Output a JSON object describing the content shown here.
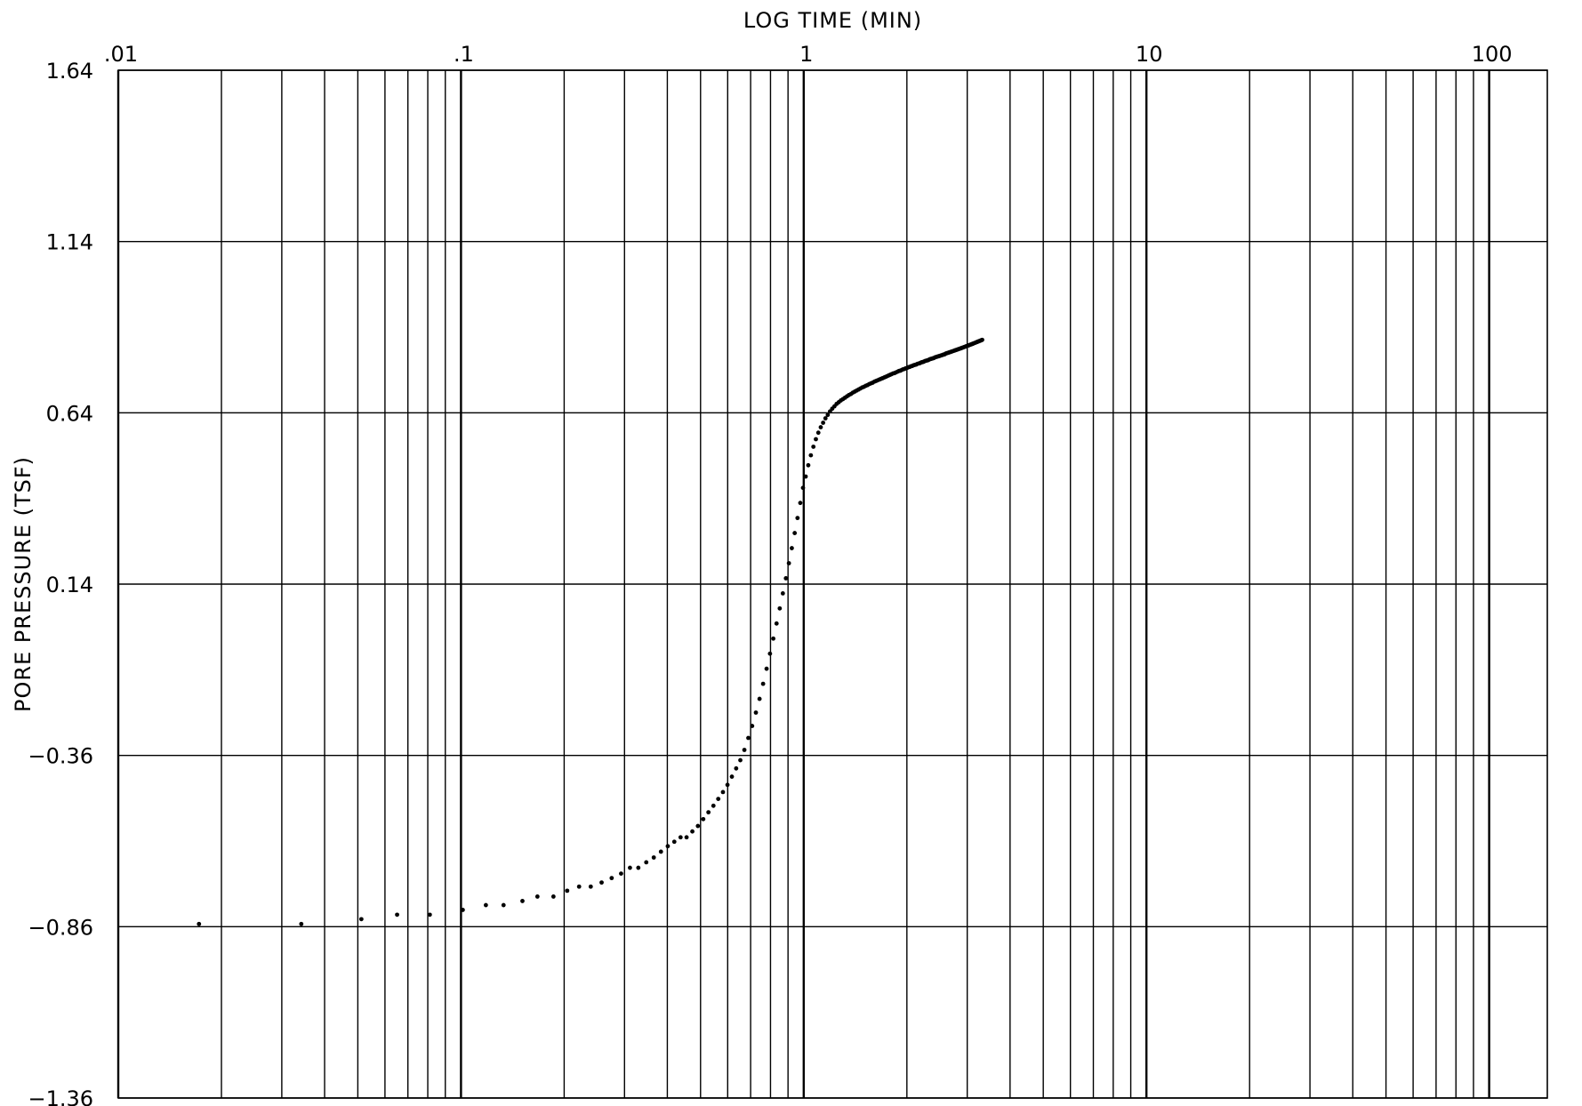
{
  "chart_data": {
    "type": "scatter",
    "title": "",
    "xlabel": "LOG TIME (MIN)",
    "ylabel": "PORE PRESSURE (TSF)",
    "x_scale": "log",
    "xlim": [
      0.01,
      150
    ],
    "ylim": [
      -1.36,
      1.64
    ],
    "x_tick_labels": [
      {
        "value": 0.01,
        "label": ".01"
      },
      {
        "value": 0.1,
        "label": ".1"
      },
      {
        "value": 1,
        "label": "1"
      },
      {
        "value": 10,
        "label": "10"
      },
      {
        "value": 100,
        "label": "100"
      }
    ],
    "y_tick_labels": [
      {
        "value": 1.64,
        "label": "1.64"
      },
      {
        "value": 1.14,
        "label": "1.14"
      },
      {
        "value": 0.64,
        "label": "0.64"
      },
      {
        "value": 0.14,
        "label": "0.14"
      },
      {
        "value": -0.36,
        "label": "−0.36"
      },
      {
        "value": -0.86,
        "label": "−0.86"
      },
      {
        "value": -1.36,
        "label": "−1.36"
      }
    ],
    "grid": true,
    "legend": "none",
    "series": [
      {
        "points": [
          [
            0.0172,
            -0.852
          ],
          [
            0.0342,
            -0.852
          ],
          [
            0.0512,
            -0.838
          ],
          [
            0.0651,
            -0.825
          ],
          [
            0.0811,
            -0.825
          ],
          [
            0.1012,
            -0.811
          ],
          [
            0.1182,
            -0.797
          ],
          [
            0.1331,
            -0.797
          ],
          [
            0.1511,
            -0.785
          ],
          [
            0.1671,
            -0.772
          ],
          [
            0.1861,
            -0.772
          ],
          [
            0.2041,
            -0.755
          ],
          [
            0.2211,
            -0.743
          ],
          [
            0.2391,
            -0.743
          ],
          [
            0.2572,
            -0.731
          ],
          [
            0.2752,
            -0.718
          ],
          [
            0.2932,
            -0.705
          ],
          [
            0.3112,
            -0.688
          ],
          [
            0.3292,
            -0.688
          ],
          [
            0.3472,
            -0.672
          ],
          [
            0.3652,
            -0.658
          ],
          [
            0.3832,
            -0.641
          ],
          [
            0.4012,
            -0.625
          ],
          [
            0.4192,
            -0.612
          ],
          [
            0.4372,
            -0.599
          ],
          [
            0.4552,
            -0.599
          ],
          [
            0.4732,
            -0.582
          ],
          [
            0.4912,
            -0.566
          ],
          [
            0.5092,
            -0.546
          ],
          [
            0.5272,
            -0.526
          ],
          [
            0.5452,
            -0.507
          ],
          [
            0.5632,
            -0.487
          ],
          [
            0.5812,
            -0.467
          ],
          [
            0.5992,
            -0.446
          ],
          [
            0.6172,
            -0.422
          ],
          [
            0.6352,
            -0.398
          ],
          [
            0.6532,
            -0.374
          ],
          [
            0.6712,
            -0.344
          ],
          [
            0.6892,
            -0.309
          ],
          [
            0.7072,
            -0.274
          ],
          [
            0.7252,
            -0.235
          ],
          [
            0.7432,
            -0.195
          ],
          [
            0.7612,
            -0.151
          ],
          [
            0.7792,
            -0.107
          ],
          [
            0.7972,
            -0.063
          ],
          [
            0.8152,
            -0.019
          ],
          [
            0.8332,
            0.025
          ],
          [
            0.8512,
            0.069
          ],
          [
            0.8692,
            0.113
          ],
          [
            0.8872,
            0.157
          ],
          [
            0.9052,
            0.201
          ],
          [
            0.9232,
            0.245
          ],
          [
            0.9412,
            0.289
          ],
          [
            0.9592,
            0.333
          ],
          [
            0.9772,
            0.377
          ],
          [
            0.9952,
            0.421
          ],
          [
            1.0132,
            0.454
          ],
          [
            1.0312,
            0.487
          ],
          [
            1.0492,
            0.516
          ],
          [
            1.0672,
            0.541
          ],
          [
            1.0852,
            0.563
          ],
          [
            1.1032,
            0.582
          ],
          [
            1.1212,
            0.598
          ],
          [
            1.1392,
            0.611
          ],
          [
            1.1572,
            0.624
          ],
          [
            1.1752,
            0.634
          ],
          [
            1.1932,
            0.644
          ],
          [
            1.2112,
            0.652
          ],
          [
            1.2292,
            0.659
          ],
          [
            1.2472,
            0.666
          ],
          [
            1.2652,
            0.671
          ],
          [
            1.2832,
            0.676
          ],
          [
            1.3012,
            0.68
          ],
          [
            1.3192,
            0.684
          ],
          [
            1.3372,
            0.688
          ],
          [
            1.3552,
            0.692
          ],
          [
            1.3732,
            0.695
          ],
          [
            1.3912,
            0.699
          ],
          [
            1.4092,
            0.702
          ],
          [
            1.4272,
            0.705
          ],
          [
            1.4452,
            0.708
          ],
          [
            1.4632,
            0.711
          ],
          [
            1.4812,
            0.714
          ],
          [
            1.4992,
            0.716
          ],
          [
            1.5172,
            0.719
          ],
          [
            1.5352,
            0.721
          ],
          [
            1.5532,
            0.724
          ],
          [
            1.5712,
            0.726
          ],
          [
            1.5892,
            0.728
          ],
          [
            1.6072,
            0.731
          ],
          [
            1.6252,
            0.733
          ],
          [
            1.6432,
            0.735
          ],
          [
            1.6612,
            0.737
          ],
          [
            1.6792,
            0.739
          ],
          [
            1.6972,
            0.741
          ],
          [
            1.7152,
            0.743
          ],
          [
            1.7332,
            0.745
          ],
          [
            1.7512,
            0.747
          ],
          [
            1.7692,
            0.749
          ],
          [
            1.7872,
            0.751
          ],
          [
            1.8052,
            0.753
          ],
          [
            1.8232,
            0.755
          ],
          [
            1.8412,
            0.756
          ],
          [
            1.8592,
            0.758
          ],
          [
            1.8772,
            0.76
          ],
          [
            1.8952,
            0.762
          ],
          [
            1.9132,
            0.763
          ],
          [
            1.9312,
            0.765
          ],
          [
            1.9492,
            0.767
          ],
          [
            1.9672,
            0.768
          ],
          [
            1.9852,
            0.77
          ],
          [
            2.0032,
            0.771
          ],
          [
            2.0212,
            0.773
          ],
          [
            2.0392,
            0.774
          ],
          [
            2.0572,
            0.776
          ],
          [
            2.0752,
            0.777
          ],
          [
            2.0932,
            0.779
          ],
          [
            2.1112,
            0.78
          ],
          [
            2.1292,
            0.781
          ],
          [
            2.1472,
            0.783
          ],
          [
            2.1652,
            0.784
          ],
          [
            2.1832,
            0.785
          ],
          [
            2.2012,
            0.787
          ],
          [
            2.2192,
            0.788
          ],
          [
            2.2372,
            0.789
          ],
          [
            2.2552,
            0.791
          ],
          [
            2.2732,
            0.792
          ],
          [
            2.2912,
            0.793
          ],
          [
            2.3092,
            0.794
          ],
          [
            2.3272,
            0.796
          ],
          [
            2.3452,
            0.797
          ],
          [
            2.3632,
            0.798
          ],
          [
            2.3812,
            0.799
          ],
          [
            2.3992,
            0.8
          ],
          [
            2.4172,
            0.802
          ],
          [
            2.4352,
            0.803
          ],
          [
            2.4532,
            0.804
          ],
          [
            2.4712,
            0.805
          ],
          [
            2.4892,
            0.806
          ],
          [
            2.5072,
            0.807
          ],
          [
            2.5252,
            0.808
          ],
          [
            2.5432,
            0.809
          ],
          [
            2.5612,
            0.81
          ],
          [
            2.5792,
            0.811
          ],
          [
            2.5972,
            0.813
          ],
          [
            2.6152,
            0.814
          ],
          [
            2.6332,
            0.815
          ],
          [
            2.6512,
            0.816
          ],
          [
            2.6692,
            0.817
          ],
          [
            2.6872,
            0.818
          ],
          [
            2.7052,
            0.819
          ],
          [
            2.7232,
            0.82
          ],
          [
            2.7412,
            0.821
          ],
          [
            2.7592,
            0.822
          ],
          [
            2.7772,
            0.823
          ],
          [
            2.7952,
            0.824
          ],
          [
            2.8132,
            0.825
          ],
          [
            2.8312,
            0.826
          ],
          [
            2.8492,
            0.827
          ],
          [
            2.8672,
            0.828
          ],
          [
            2.8852,
            0.829
          ],
          [
            2.9032,
            0.83
          ],
          [
            2.9212,
            0.831
          ],
          [
            2.9392,
            0.832
          ],
          [
            2.9572,
            0.833
          ],
          [
            2.9752,
            0.834
          ],
          [
            2.9932,
            0.835
          ],
          [
            3.0112,
            0.836
          ],
          [
            3.0292,
            0.837
          ],
          [
            3.0472,
            0.838
          ],
          [
            3.0652,
            0.839
          ],
          [
            3.0832,
            0.84
          ],
          [
            3.1012,
            0.841
          ],
          [
            3.1192,
            0.842
          ],
          [
            3.1372,
            0.843
          ],
          [
            3.1552,
            0.844
          ],
          [
            3.1732,
            0.845
          ],
          [
            3.1912,
            0.846
          ],
          [
            3.2092,
            0.847
          ],
          [
            3.2272,
            0.848
          ],
          [
            3.2452,
            0.849
          ],
          [
            3.2632,
            0.85
          ],
          [
            3.2812,
            0.851
          ],
          [
            3.2992,
            0.852
          ],
          [
            3.3172,
            0.853
          ]
        ]
      }
    ]
  }
}
